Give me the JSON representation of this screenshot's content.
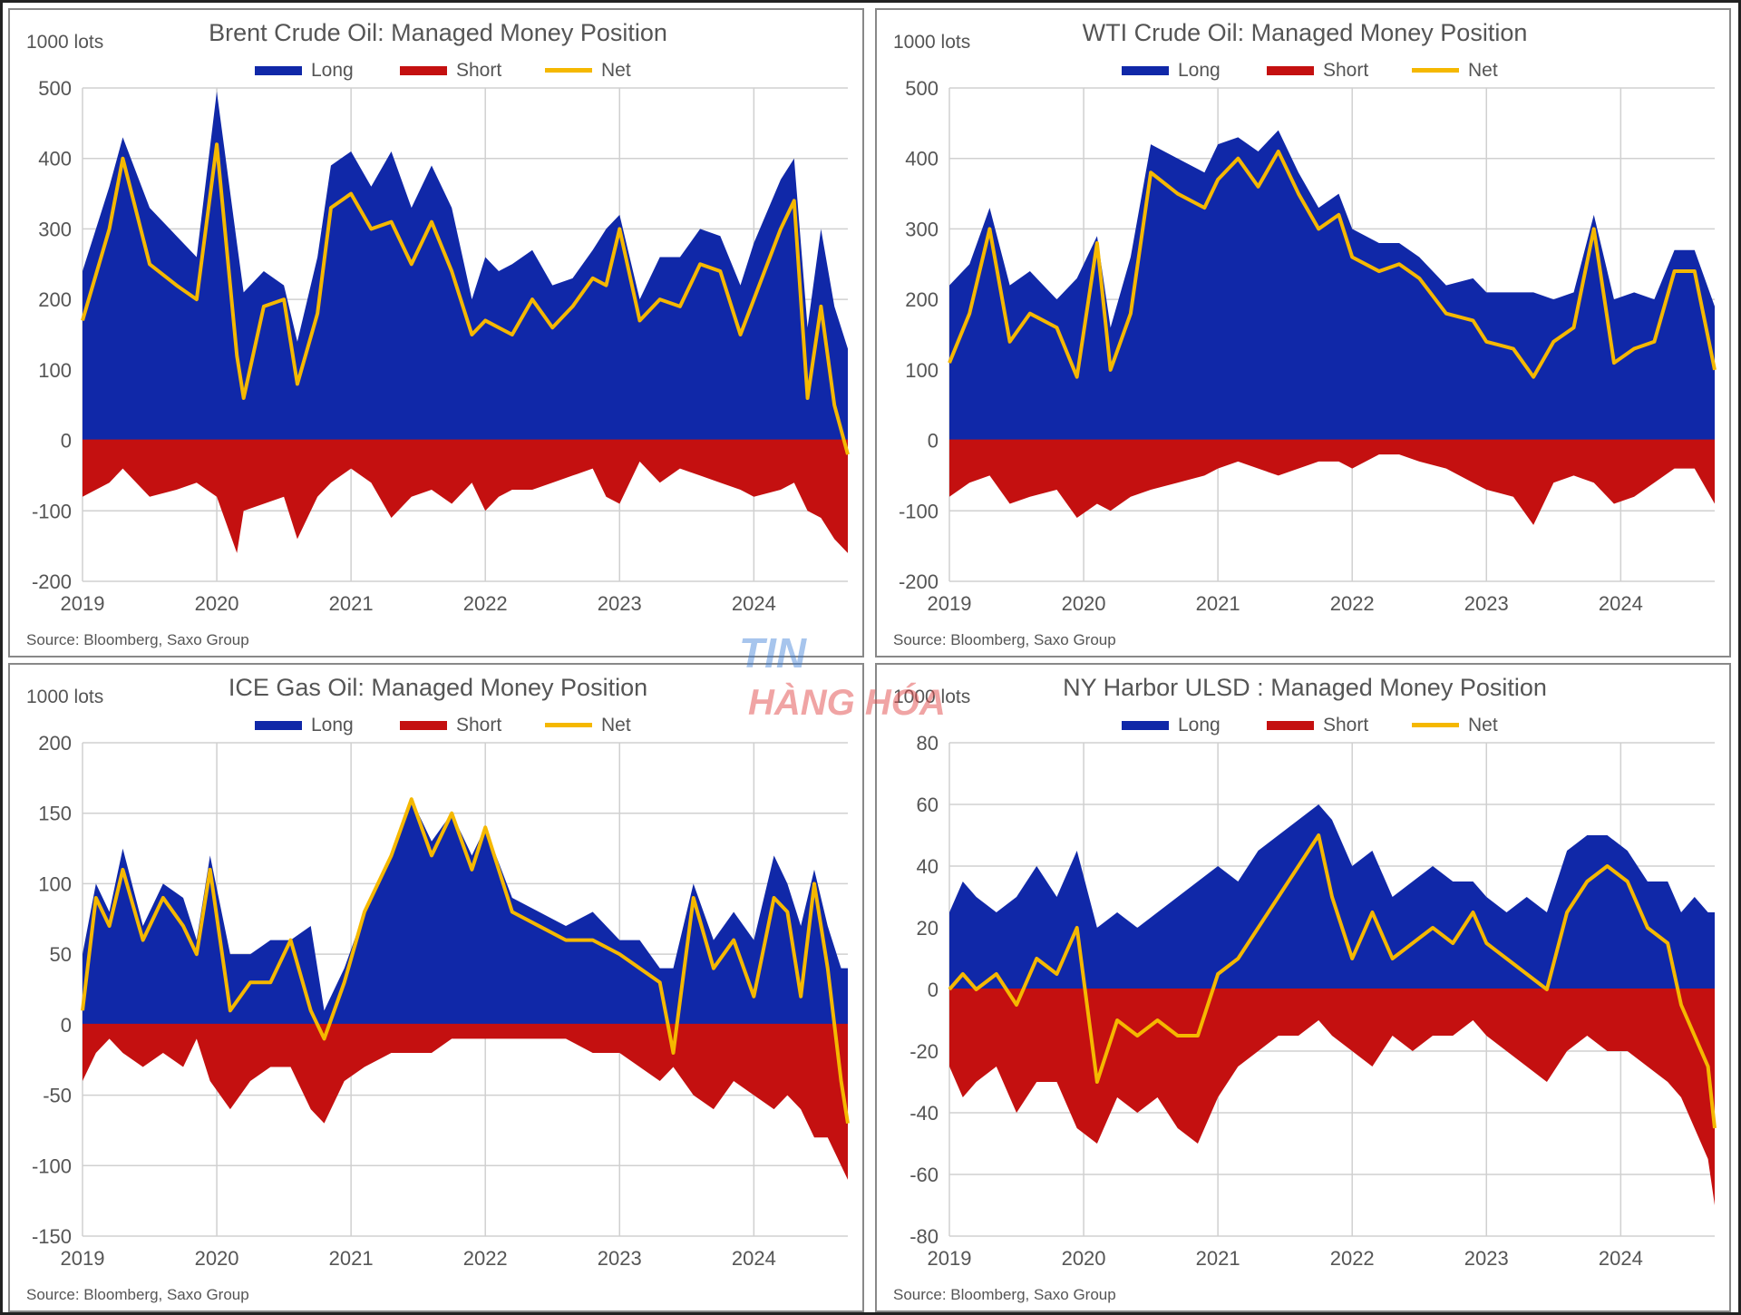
{
  "colors": {
    "long": "#1028a8",
    "short": "#c41010",
    "net": "#f5b800",
    "grid": "#d0d0d0",
    "text": "#555555"
  },
  "watermark": {
    "line1": "TIN",
    "line2": "HÀNG HÓA"
  },
  "chart_data": [
    {
      "type": "area",
      "title": "Brent Crude Oil: Managed Money Position",
      "ylabel": "1000 lots",
      "legend": {
        "long": "Long",
        "short": "Short",
        "net": "Net"
      },
      "legend_position": "top-center",
      "grid": true,
      "ylim": [
        -200,
        500
      ],
      "yticks": [
        500,
        400,
        300,
        200,
        100,
        0,
        -100,
        -200
      ],
      "xlim": [
        2019.0,
        2024.7
      ],
      "xticks": [
        "2019",
        "2020",
        "2021",
        "2022",
        "2023",
        "2024"
      ],
      "source": "Source: Bloomberg, Saxo Group",
      "x": [
        2019.0,
        2019.2,
        2019.3,
        2019.5,
        2019.7,
        2019.85,
        2020.0,
        2020.15,
        2020.2,
        2020.35,
        2020.5,
        2020.6,
        2020.75,
        2020.85,
        2021.0,
        2021.15,
        2021.3,
        2021.45,
        2021.6,
        2021.75,
        2021.9,
        2022.0,
        2022.1,
        2022.2,
        2022.35,
        2022.5,
        2022.65,
        2022.8,
        2022.9,
        2023.0,
        2023.15,
        2023.3,
        2023.45,
        2023.6,
        2023.75,
        2023.9,
        2024.0,
        2024.2,
        2024.3,
        2024.4,
        2024.5,
        2024.6,
        2024.7
      ],
      "series": [
        {
          "name": "Long",
          "values": [
            240,
            360,
            430,
            330,
            290,
            260,
            495,
            280,
            210,
            240,
            220,
            140,
            260,
            390,
            410,
            360,
            410,
            330,
            390,
            330,
            200,
            260,
            240,
            250,
            270,
            220,
            230,
            270,
            300,
            320,
            200,
            260,
            260,
            300,
            290,
            220,
            280,
            370,
            400,
            160,
            300,
            190,
            130
          ]
        },
        {
          "name": "Short",
          "values": [
            -80,
            -60,
            -40,
            -80,
            -70,
            -60,
            -80,
            -160,
            -100,
            -90,
            -80,
            -140,
            -80,
            -60,
            -40,
            -60,
            -110,
            -80,
            -70,
            -90,
            -60,
            -100,
            -80,
            -70,
            -70,
            -60,
            -50,
            -40,
            -80,
            -90,
            -30,
            -60,
            -40,
            -50,
            -60,
            -70,
            -80,
            -70,
            -60,
            -100,
            -110,
            -140,
            -160
          ]
        },
        {
          "name": "Net",
          "values": [
            170,
            300,
            400,
            250,
            220,
            200,
            420,
            120,
            60,
            190,
            200,
            80,
            180,
            330,
            350,
            300,
            310,
            250,
            310,
            240,
            150,
            170,
            160,
            150,
            200,
            160,
            190,
            230,
            220,
            300,
            170,
            200,
            190,
            250,
            240,
            150,
            200,
            300,
            340,
            60,
            190,
            50,
            -20
          ]
        }
      ]
    },
    {
      "type": "area",
      "title": "WTI Crude Oil: Managed Money Position",
      "ylabel": "1000 lots",
      "legend": {
        "long": "Long",
        "short": "Short",
        "net": "Net"
      },
      "legend_position": "top-center",
      "grid": true,
      "ylim": [
        -200,
        500
      ],
      "yticks": [
        500,
        400,
        300,
        200,
        100,
        0,
        -100,
        -200
      ],
      "xlim": [
        2019.0,
        2024.7
      ],
      "xticks": [
        "2019",
        "2020",
        "2021",
        "2022",
        "2023",
        "2024"
      ],
      "source": "Source: Bloomberg, Saxo Group",
      "x": [
        2019.0,
        2019.15,
        2019.3,
        2019.45,
        2019.6,
        2019.8,
        2019.95,
        2020.1,
        2020.2,
        2020.35,
        2020.5,
        2020.7,
        2020.9,
        2021.0,
        2021.15,
        2021.3,
        2021.45,
        2021.6,
        2021.75,
        2021.9,
        2022.0,
        2022.2,
        2022.35,
        2022.5,
        2022.7,
        2022.9,
        2023.0,
        2023.2,
        2023.35,
        2023.5,
        2023.65,
        2023.8,
        2023.95,
        2024.1,
        2024.25,
        2024.4,
        2024.55,
        2024.7
      ],
      "series": [
        {
          "name": "Long",
          "values": [
            220,
            250,
            330,
            220,
            240,
            200,
            230,
            290,
            160,
            260,
            420,
            400,
            380,
            420,
            430,
            410,
            440,
            380,
            330,
            350,
            300,
            280,
            280,
            260,
            220,
            230,
            210,
            210,
            210,
            200,
            210,
            320,
            200,
            210,
            200,
            270,
            270,
            190
          ]
        },
        {
          "name": "Short",
          "values": [
            -80,
            -60,
            -50,
            -90,
            -80,
            -70,
            -110,
            -90,
            -100,
            -80,
            -70,
            -60,
            -50,
            -40,
            -30,
            -40,
            -50,
            -40,
            -30,
            -30,
            -40,
            -20,
            -20,
            -30,
            -40,
            -60,
            -70,
            -80,
            -120,
            -60,
            -50,
            -60,
            -90,
            -80,
            -60,
            -40,
            -40,
            -90
          ]
        },
        {
          "name": "Net",
          "values": [
            110,
            180,
            300,
            140,
            180,
            160,
            90,
            280,
            100,
            180,
            380,
            350,
            330,
            370,
            400,
            360,
            410,
            350,
            300,
            320,
            260,
            240,
            250,
            230,
            180,
            170,
            140,
            130,
            90,
            140,
            160,
            300,
            110,
            130,
            140,
            240,
            240,
            100
          ]
        }
      ]
    },
    {
      "type": "area",
      "title": "ICE Gas Oil: Managed Money Position",
      "ylabel": "1000 lots",
      "legend": {
        "long": "Long",
        "short": "Short",
        "net": "Net"
      },
      "legend_position": "top-center",
      "grid": true,
      "ylim": [
        -150,
        200
      ],
      "yticks": [
        200,
        150,
        100,
        50,
        0,
        -50,
        -100,
        -150
      ],
      "xlim": [
        2019.0,
        2024.7
      ],
      "xticks": [
        "2019",
        "2020",
        "2021",
        "2022",
        "2023",
        "2024"
      ],
      "source": "Source: Bloomberg, Saxo Group",
      "x": [
        2019.0,
        2019.1,
        2019.2,
        2019.3,
        2019.45,
        2019.6,
        2019.75,
        2019.85,
        2019.95,
        2020.1,
        2020.25,
        2020.4,
        2020.55,
        2020.7,
        2020.8,
        2020.95,
        2021.1,
        2021.3,
        2021.45,
        2021.6,
        2021.75,
        2021.9,
        2022.0,
        2022.2,
        2022.4,
        2022.6,
        2022.8,
        2023.0,
        2023.15,
        2023.3,
        2023.4,
        2023.55,
        2023.7,
        2023.85,
        2024.0,
        2024.15,
        2024.25,
        2024.35,
        2024.45,
        2024.55,
        2024.65,
        2024.7
      ],
      "series": [
        {
          "name": "Long",
          "values": [
            50,
            100,
            80,
            125,
            70,
            100,
            90,
            60,
            120,
            50,
            50,
            60,
            60,
            70,
            10,
            40,
            80,
            120,
            160,
            130,
            150,
            120,
            140,
            90,
            80,
            70,
            80,
            60,
            60,
            40,
            40,
            100,
            60,
            80,
            60,
            120,
            100,
            70,
            110,
            70,
            40,
            40
          ]
        },
        {
          "name": "Short",
          "values": [
            -40,
            -20,
            -10,
            -20,
            -30,
            -20,
            -30,
            -10,
            -40,
            -60,
            -40,
            -30,
            -30,
            -60,
            -70,
            -40,
            -30,
            -20,
            -20,
            -20,
            -10,
            -10,
            -10,
            -10,
            -10,
            -10,
            -20,
            -20,
            -30,
            -40,
            -30,
            -50,
            -60,
            -40,
            -50,
            -60,
            -50,
            -60,
            -80,
            -80,
            -100,
            -110
          ]
        },
        {
          "name": "Net",
          "values": [
            10,
            90,
            70,
            110,
            60,
            90,
            70,
            50,
            110,
            10,
            30,
            30,
            60,
            10,
            -10,
            30,
            80,
            120,
            160,
            120,
            150,
            110,
            140,
            80,
            70,
            60,
            60,
            50,
            40,
            30,
            -20,
            90,
            40,
            60,
            20,
            90,
            80,
            20,
            100,
            40,
            -40,
            -70
          ]
        }
      ]
    },
    {
      "type": "area",
      "title": "NY Harbor ULSD : Managed Money Position",
      "ylabel": "1000 lots",
      "legend": {
        "long": "Long",
        "short": "Short",
        "net": "Net"
      },
      "legend_position": "top-center",
      "grid": true,
      "ylim": [
        -80,
        80
      ],
      "yticks": [
        80,
        60,
        40,
        20,
        0,
        -20,
        -40,
        -60,
        -80
      ],
      "xlim": [
        2019.0,
        2024.7
      ],
      "xticks": [
        "2019",
        "2020",
        "2021",
        "2022",
        "2023",
        "2024"
      ],
      "source": "Source: Bloomberg, Saxo Group",
      "x": [
        2019.0,
        2019.1,
        2019.2,
        2019.35,
        2019.5,
        2019.65,
        2019.8,
        2019.95,
        2020.1,
        2020.25,
        2020.4,
        2020.55,
        2020.7,
        2020.85,
        2021.0,
        2021.15,
        2021.3,
        2021.45,
        2021.6,
        2021.75,
        2021.85,
        2022.0,
        2022.15,
        2022.3,
        2022.45,
        2022.6,
        2022.75,
        2022.9,
        2023.0,
        2023.15,
        2023.3,
        2023.45,
        2023.6,
        2023.75,
        2023.9,
        2024.05,
        2024.2,
        2024.35,
        2024.45,
        2024.55,
        2024.65,
        2024.7
      ],
      "series": [
        {
          "name": "Long",
          "values": [
            25,
            35,
            30,
            25,
            30,
            40,
            30,
            45,
            20,
            25,
            20,
            25,
            30,
            35,
            40,
            35,
            45,
            50,
            55,
            60,
            55,
            40,
            45,
            30,
            35,
            40,
            35,
            35,
            30,
            25,
            30,
            25,
            45,
            50,
            50,
            45,
            35,
            35,
            25,
            30,
            25,
            25
          ]
        },
        {
          "name": "Short",
          "values": [
            -25,
            -35,
            -30,
            -25,
            -40,
            -30,
            -30,
            -45,
            -50,
            -35,
            -40,
            -35,
            -45,
            -50,
            -35,
            -25,
            -20,
            -15,
            -15,
            -10,
            -15,
            -20,
            -25,
            -15,
            -20,
            -15,
            -15,
            -10,
            -15,
            -20,
            -25,
            -30,
            -20,
            -15,
            -20,
            -20,
            -25,
            -30,
            -35,
            -45,
            -55,
            -70
          ]
        },
        {
          "name": "Net",
          "values": [
            0,
            5,
            0,
            5,
            -5,
            10,
            5,
            20,
            -30,
            -10,
            -15,
            -10,
            -15,
            -15,
            5,
            10,
            20,
            30,
            40,
            50,
            30,
            10,
            25,
            10,
            15,
            20,
            15,
            25,
            15,
            10,
            5,
            0,
            25,
            35,
            40,
            35,
            20,
            15,
            -5,
            -15,
            -25,
            -45
          ]
        }
      ]
    }
  ]
}
